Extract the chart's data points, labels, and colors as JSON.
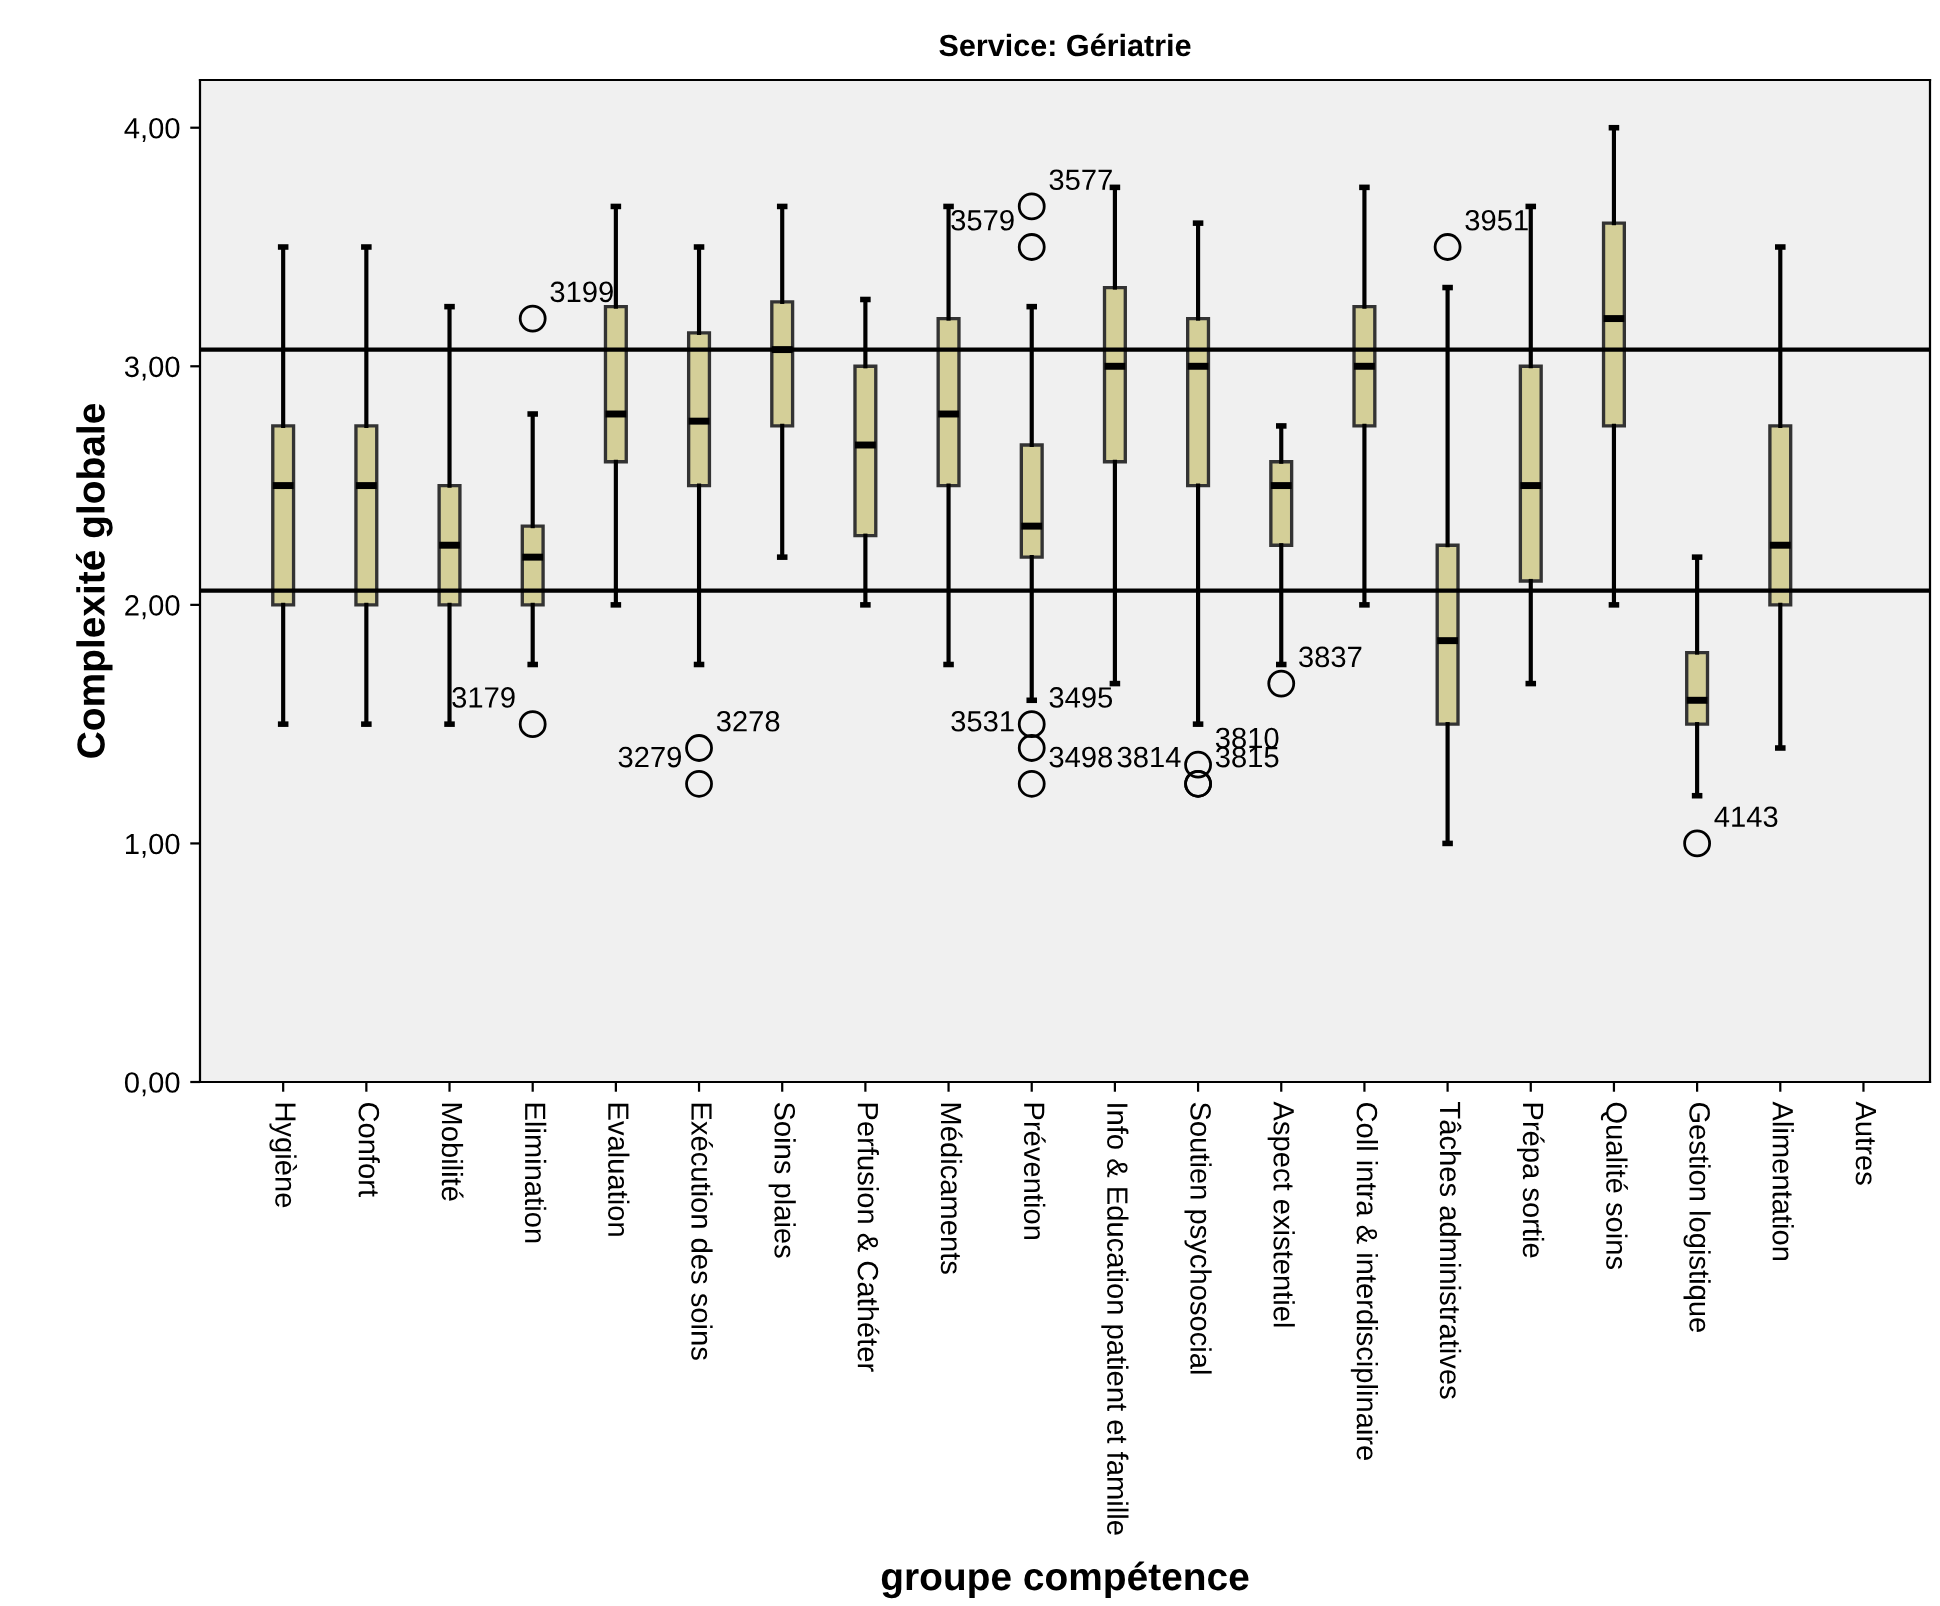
{
  "chart_data": {
    "type": "box",
    "title": "Service: Gériatrie",
    "xlabel": "groupe compétence",
    "ylabel": "Complexité globale",
    "categories": [
      "Hygiène",
      "Confort",
      "Mobilité",
      "Elimination",
      "Evaluation",
      "Exécution des soins",
      "Soins plaies",
      "Perfusion & Cathéter",
      "Médicaments",
      "Prévention",
      "Info & Education patient et famille",
      "Soutien psychosocial",
      "Aspect existentiel",
      "Coll intra & interdisciplinaire",
      "Tâches administratives",
      "Prépa sortie",
      "Qualité soins",
      "Gestion logistique",
      "Alimentation",
      "Autres"
    ],
    "color": "#d4cf98",
    "boxes": [
      {
        "low": 1.5,
        "q1": 2.0,
        "median": 2.5,
        "q3": 2.75,
        "high": 3.5
      },
      {
        "low": 1.5,
        "q1": 2.0,
        "median": 2.5,
        "q3": 2.75,
        "high": 3.5
      },
      {
        "low": 1.5,
        "q1": 2.0,
        "median": 2.25,
        "q3": 2.5,
        "high": 3.25
      },
      {
        "low": 1.75,
        "q1": 2.0,
        "median": 2.2,
        "q3": 2.33,
        "high": 2.8,
        "outliers": [
          3.2,
          1.5
        ]
      },
      {
        "low": 2.0,
        "q1": 2.6,
        "median": 2.8,
        "q3": 3.25,
        "high": 3.67
      },
      {
        "low": 1.75,
        "q1": 2.5,
        "median": 2.77,
        "q3": 3.14,
        "high": 3.5,
        "outliers": [
          1.4,
          1.25
        ]
      },
      {
        "low": 2.2,
        "q1": 2.75,
        "median": 3.07,
        "q3": 3.27,
        "high": 3.67
      },
      {
        "low": 2.0,
        "q1": 2.29,
        "median": 2.67,
        "q3": 3.0,
        "high": 3.28
      },
      {
        "low": 1.75,
        "q1": 2.5,
        "median": 2.8,
        "q3": 3.2,
        "high": 3.67
      },
      {
        "low": 1.6,
        "q1": 2.2,
        "median": 2.33,
        "q3": 2.67,
        "high": 3.25,
        "outliers": [
          3.67,
          3.5,
          1.5,
          1.4,
          1.25
        ]
      },
      {
        "low": 1.67,
        "q1": 2.6,
        "median": 3.0,
        "q3": 3.33,
        "high": 3.75
      },
      {
        "low": 1.5,
        "q1": 2.5,
        "median": 3.0,
        "q3": 3.2,
        "high": 3.6,
        "outliers": [
          1.33,
          1.25,
          1.25
        ]
      },
      {
        "low": 1.75,
        "q1": 2.25,
        "median": 2.5,
        "q3": 2.6,
        "high": 2.75,
        "outliers": [
          1.67
        ]
      },
      {
        "low": 2.0,
        "q1": 2.75,
        "median": 3.0,
        "q3": 3.25,
        "high": 3.75
      },
      {
        "low": 1.0,
        "q1": 1.5,
        "median": 1.85,
        "q3": 2.25,
        "high": 3.33,
        "outliers": [
          3.5
        ]
      },
      {
        "low": 1.67,
        "q1": 2.1,
        "median": 2.5,
        "q3": 3.0,
        "high": 3.67
      },
      {
        "low": 2.0,
        "q1": 2.75,
        "median": 3.2,
        "q3": 3.6,
        "high": 4.0
      },
      {
        "low": 1.2,
        "q1": 1.5,
        "median": 1.6,
        "q3": 1.8,
        "high": 2.2,
        "outliers": [
          1.0
        ]
      },
      {
        "low": 1.4,
        "q1": 2.0,
        "median": 2.25,
        "q3": 2.75,
        "high": 3.5
      },
      null
    ],
    "ylim": [
      0,
      4.2
    ],
    "yticks": [
      {
        "value": 0,
        "label": "0,00"
      },
      {
        "value": 1,
        "label": "1,00"
      },
      {
        "value": 2,
        "label": "2,00"
      },
      {
        "value": 3,
        "label": "3,00"
      },
      {
        "value": 4,
        "label": "4,00"
      }
    ],
    "grid": false,
    "ref_lines": [
      {
        "axis": "y",
        "value": 3.07,
        "color": "#000000"
      },
      {
        "axis": "y",
        "value": 2.06,
        "color": "#000000"
      }
    ],
    "annotations": [
      "3199",
      "3179",
      "3278",
      "3279",
      "3577",
      "3579",
      "3495",
      "3531",
      "3498",
      "3810",
      "3814",
      "3815",
      "3837",
      "3951",
      "4143"
    ]
  }
}
